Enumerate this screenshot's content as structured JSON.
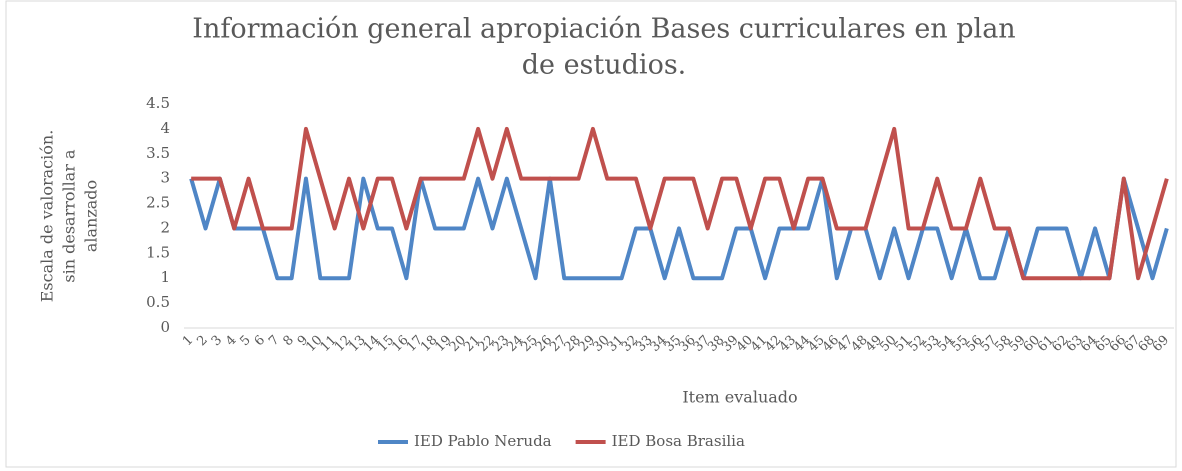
{
  "chart_data": {
    "type": "line",
    "title": [
      "Información general apropiación Bases curriculares en plan",
      "de estudios."
    ],
    "y_label": [
      "Escala de valoración.",
      "sin desarrollar a",
      "alanzado"
    ],
    "x_label": "Item evaluado",
    "categories": [
      "1",
      "2",
      "3",
      "4",
      "5",
      "6",
      "7",
      "8",
      "9",
      "10",
      "11",
      "12",
      "13",
      "14",
      "15",
      "16",
      "17",
      "18",
      "19",
      "20",
      "21",
      "22",
      "23",
      "24",
      "25",
      "26",
      "27",
      "28",
      "29",
      "30",
      "31",
      "32",
      "33",
      "34",
      "35",
      "36",
      "37",
      "38",
      "39",
      "40",
      "41",
      "42",
      "43",
      "44",
      "45",
      "46",
      "47",
      "48",
      "49",
      "50",
      "51",
      "52",
      "53",
      "54",
      "55",
      "56",
      "57",
      "58",
      "59",
      "60",
      "61",
      "62",
      "63",
      "64",
      "65",
      "66",
      "67",
      "68",
      "69"
    ],
    "series": [
      {
        "name": "IED Pablo Neruda",
        "color": "#4f86c6",
        "values": [
          3,
          2,
          3,
          2,
          2,
          2,
          1,
          1,
          3,
          1,
          1,
          1,
          3,
          2,
          2,
          1,
          3,
          2,
          2,
          2,
          3,
          2,
          3,
          2,
          1,
          3,
          1,
          1,
          1,
          1,
          1,
          2,
          2,
          1,
          2,
          1,
          1,
          1,
          2,
          2,
          1,
          2,
          2,
          2,
          3,
          1,
          2,
          2,
          1,
          2,
          1,
          2,
          2,
          1,
          2,
          1,
          1,
          2,
          1,
          2,
          2,
          2,
          1,
          2,
          1,
          3,
          2,
          1,
          2
        ]
      },
      {
        "name": "IED Bosa Brasilia",
        "color": "#c0504d",
        "values": [
          3,
          3,
          3,
          2,
          3,
          2,
          2,
          2,
          4,
          3,
          2,
          3,
          2,
          3,
          3,
          2,
          3,
          3,
          3,
          3,
          4,
          3,
          4,
          3,
          3,
          3,
          3,
          3,
          4,
          3,
          3,
          3,
          2,
          3,
          3,
          3,
          2,
          3,
          3,
          2,
          3,
          3,
          2,
          3,
          3,
          2,
          2,
          2,
          3,
          4,
          2,
          2,
          3,
          2,
          2,
          3,
          2,
          2,
          1,
          1,
          1,
          1,
          1,
          1,
          1,
          3,
          1,
          2,
          3
        ]
      }
    ],
    "ylim": [
      0,
      4.5
    ],
    "yticks": [
      0,
      0.5,
      1,
      1.5,
      2,
      2.5,
      3,
      3.5,
      4,
      4.5
    ],
    "grid": false,
    "legend": "bottom"
  }
}
